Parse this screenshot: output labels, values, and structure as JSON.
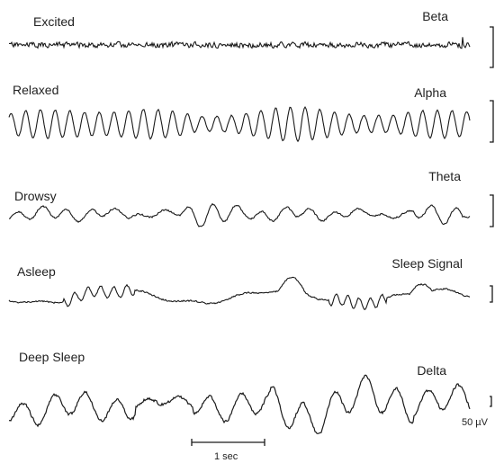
{
  "rows": [
    {
      "state": "Excited",
      "band": "Beta",
      "seed": 11,
      "type": "beta"
    },
    {
      "state": "Relaxed",
      "band": "Alpha",
      "seed": 23,
      "type": "alpha"
    },
    {
      "state": "Drowsy",
      "band": "Theta",
      "seed": 37,
      "type": "theta"
    },
    {
      "state": "Asleep",
      "band": "Sleep Signal",
      "seed": 51,
      "type": "sleep"
    },
    {
      "state": "Deep Sleep",
      "band": "Delta",
      "seed": 67,
      "type": "delta"
    }
  ],
  "time_scale": {
    "label": "1 sec"
  },
  "amplitude_scale": {
    "label": "50 µV"
  },
  "colors": {
    "trace": "#1a1a1a",
    "text": "#222222",
    "background": "#ffffff"
  }
}
